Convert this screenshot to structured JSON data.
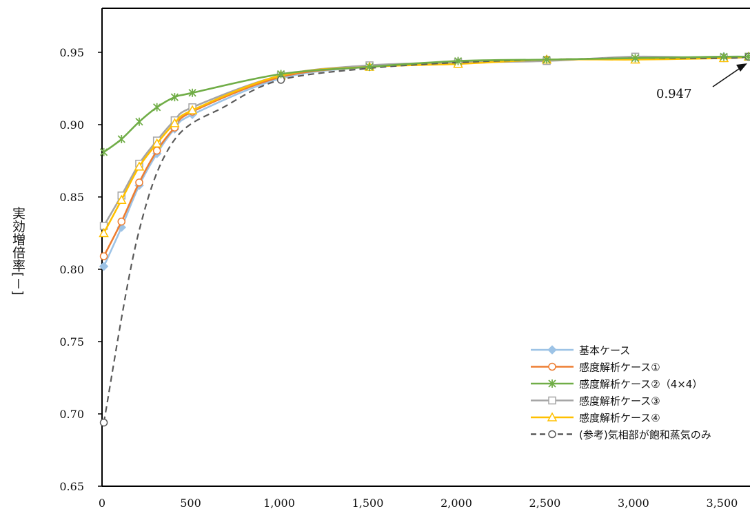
{
  "chart_data": {
    "type": "line",
    "ylabel": "実効増倍率[－]",
    "xlim": [
      0,
      3650
    ],
    "ylim": [
      0.65,
      0.98
    ],
    "xticks": [
      0,
      500,
      1000,
      1500,
      2000,
      2500,
      3000,
      3500
    ],
    "xtick_labels": [
      "0",
      "500",
      "1,000",
      "1,500",
      "2,000",
      "2,500",
      "3,000",
      "3,500"
    ],
    "yticks": [
      0.65,
      0.7,
      0.75,
      0.8,
      0.85,
      0.9,
      0.95
    ],
    "ytick_labels": [
      "0.65",
      "0.70",
      "0.75",
      "0.80",
      "0.85",
      "0.90",
      "0.95"
    ],
    "grid": false,
    "legend_position": "bottom-right",
    "annotation": {
      "text": "0.947",
      "x": 3650,
      "y": 0.947
    },
    "series": [
      {
        "name": "基本ケース",
        "color": "#9DC3E6",
        "marker": "diamond",
        "dash": "solid",
        "x": [
          10,
          110,
          210,
          310,
          410,
          510,
          1010,
          1510,
          2010,
          2510,
          3010,
          3510,
          3650
        ],
        "y": [
          0.802,
          0.829,
          0.858,
          0.88,
          0.897,
          0.907,
          0.932,
          0.94,
          0.943,
          0.945,
          0.946,
          0.947,
          0.947
        ]
      },
      {
        "name": "感度解析ケース①",
        "color": "#ED7D31",
        "marker": "circle",
        "dash": "solid",
        "x": [
          10,
          110,
          210,
          310,
          410,
          510,
          1010,
          1510,
          2010,
          2510,
          3010,
          3510,
          3650
        ],
        "y": [
          0.809,
          0.833,
          0.86,
          0.882,
          0.898,
          0.909,
          0.933,
          0.94,
          0.943,
          0.945,
          0.946,
          0.946,
          0.947
        ]
      },
      {
        "name": "感度解析ケース②（4×4）",
        "color": "#70AD47",
        "marker": "asterisk",
        "dash": "solid",
        "x": [
          10,
          110,
          210,
          310,
          410,
          510,
          1010,
          1510,
          2010,
          2510,
          3010,
          3510,
          3650
        ],
        "y": [
          0.881,
          0.89,
          0.902,
          0.912,
          0.919,
          0.922,
          0.935,
          0.94,
          0.944,
          0.945,
          0.946,
          0.947,
          0.947
        ]
      },
      {
        "name": "感度解析ケース③",
        "color": "#A5A5A5",
        "marker": "square",
        "dash": "solid",
        "x": [
          10,
          110,
          210,
          310,
          410,
          510,
          1010,
          1510,
          2010,
          2510,
          3010,
          3510,
          3650
        ],
        "y": [
          0.83,
          0.851,
          0.873,
          0.889,
          0.903,
          0.912,
          0.934,
          0.941,
          0.943,
          0.944,
          0.947,
          0.946,
          0.947
        ]
      },
      {
        "name": "感度解析ケース④",
        "color": "#FFC000",
        "marker": "triangle",
        "dash": "solid",
        "x": [
          10,
          110,
          210,
          310,
          410,
          510,
          1010,
          1510,
          2010,
          2510,
          3010,
          3510,
          3650
        ],
        "y": [
          0.825,
          0.848,
          0.871,
          0.887,
          0.901,
          0.91,
          0.934,
          0.94,
          0.942,
          0.945,
          0.945,
          0.946,
          0.947
        ]
      },
      {
        "name": "(参考)気相部が飽和蒸気のみ",
        "color": "#595959",
        "marker": "circle",
        "dash": "dashed",
        "x": [
          10,
          200,
          400,
          700,
          1010,
          1510,
          2010,
          2510,
          3010,
          3510,
          3650
        ],
        "y": [
          0.694,
          0.822,
          0.888,
          0.913,
          0.931,
          0.939,
          0.943,
          0.945,
          0.946,
          0.946,
          0.947
        ],
        "markers_at": [
          10,
          1010,
          3650
        ]
      }
    ]
  }
}
